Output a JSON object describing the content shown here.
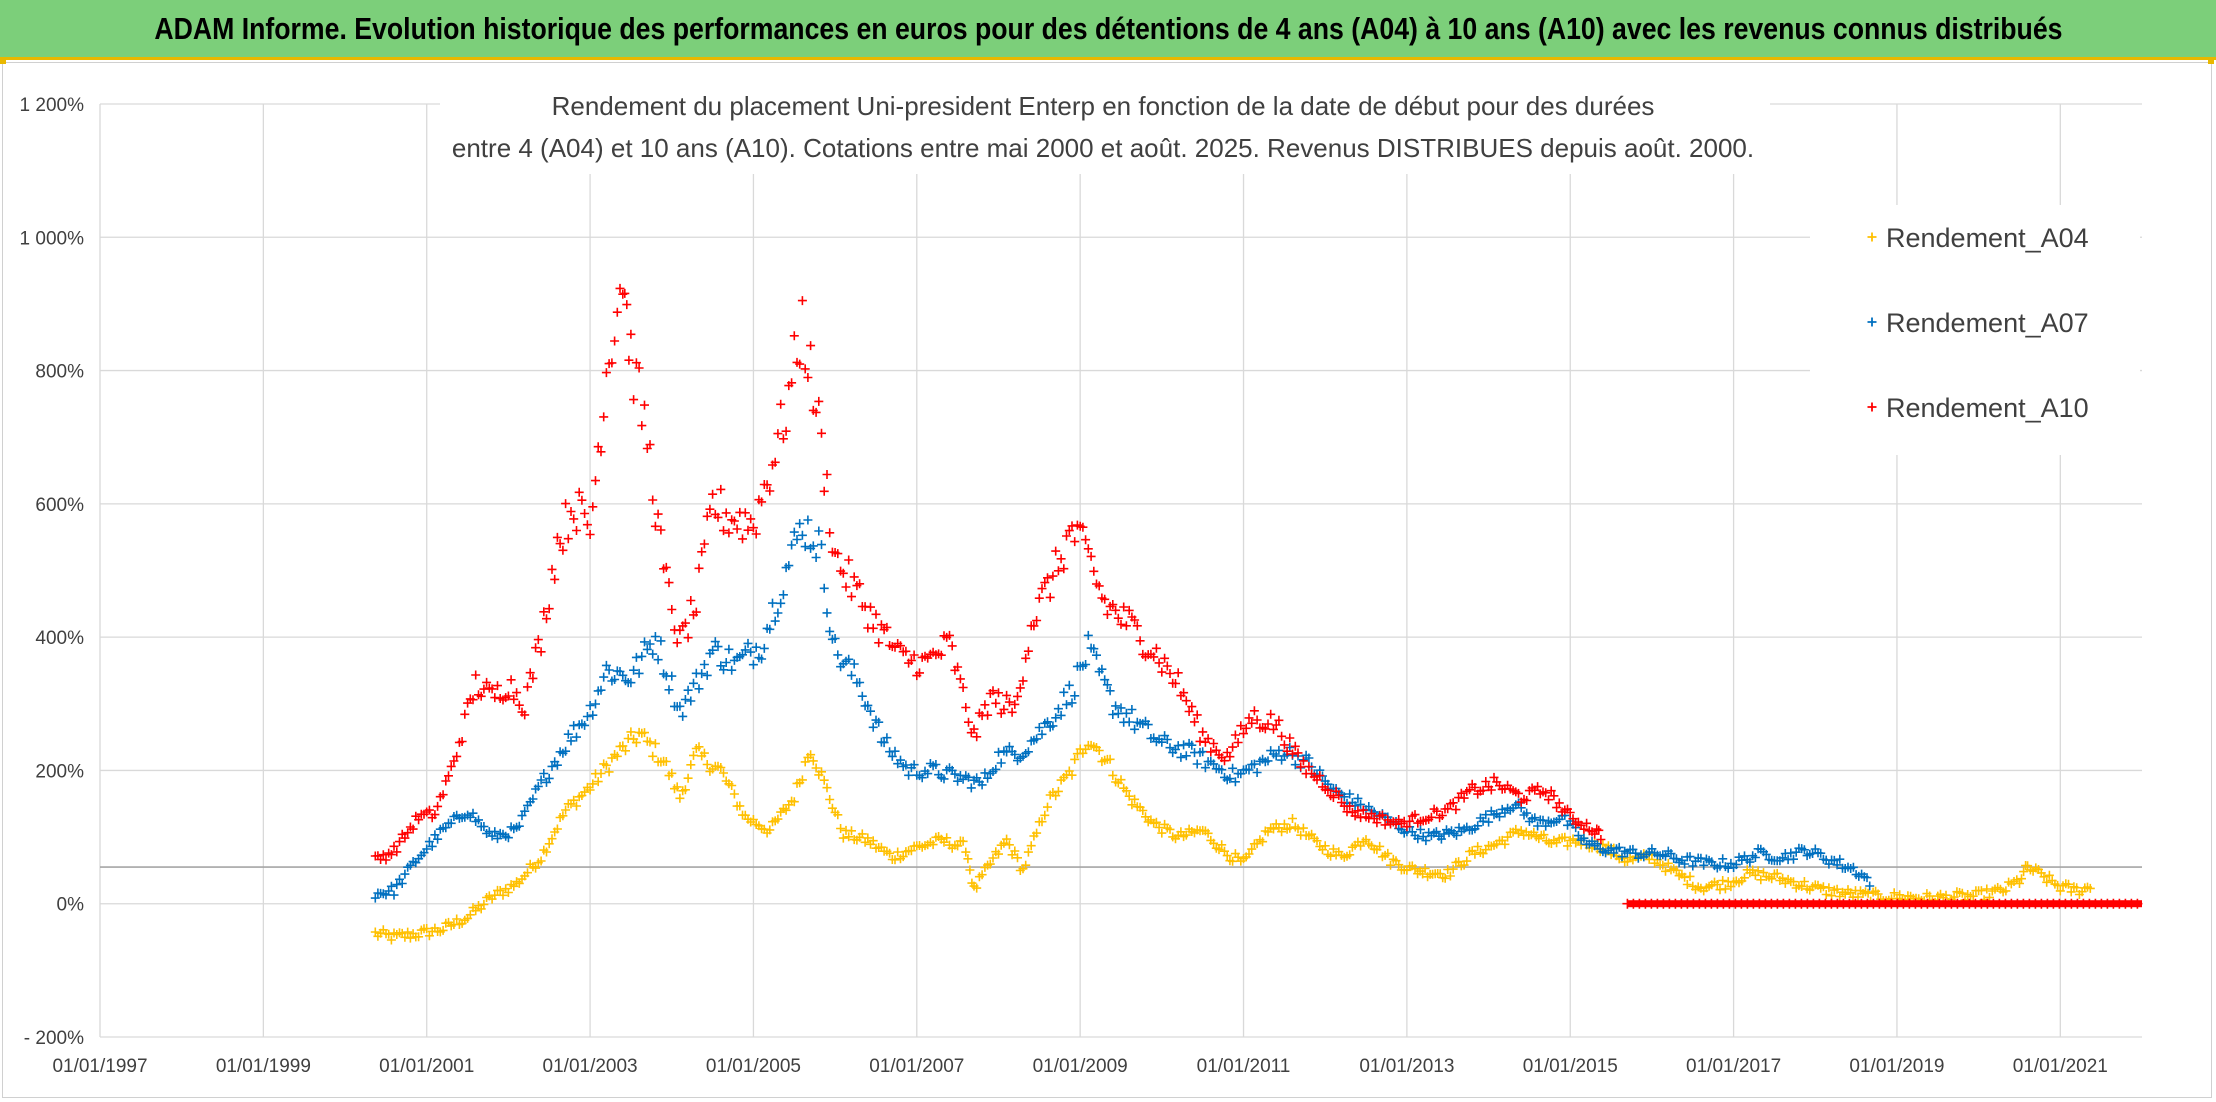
{
  "header": {
    "title": "ADAM Informe. Evolution historique des performances en euros pour des détentions de 4 ans (A04) à 10 ans (A10) avec les revenus connus distribués"
  },
  "chart_data": {
    "type": "scatter",
    "title_lines": [
      "Rendement du placement Uni-president Enterp  en fonction de la date de début pour des durées",
      "entre 4 (A04) et 10 ans (A10). Cotations entre mai 2000 et août. 2025. Revenus DISTRIBUES depuis août. 2000."
    ],
    "x_unit": "year",
    "xlim": [
      1997.0,
      2022.0
    ],
    "x_ticks": [
      1997,
      1999,
      2001,
      2003,
      2005,
      2007,
      2009,
      2011,
      2013,
      2015,
      2017,
      2019,
      2021
    ],
    "x_tick_labels": [
      "01/01/1997",
      "01/01/1999",
      "01/01/2001",
      "01/01/2003",
      "01/01/2005",
      "01/01/2007",
      "01/01/2009",
      "01/01/2011",
      "01/01/2013",
      "01/01/2015",
      "01/01/2017",
      "01/01/2019",
      "01/01/2021"
    ],
    "ylim": [
      -200,
      1200
    ],
    "y_ticks": [
      -200,
      0,
      200,
      400,
      600,
      800,
      1000,
      1200
    ],
    "y_tick_labels": [
      "- 200%",
      "0%",
      "200%",
      "400%",
      "600%",
      "800%",
      "1 000%",
      "1 200%"
    ],
    "reference_line_y": 55,
    "grid": true,
    "legend_position": "right",
    "marker": "+",
    "series": [
      {
        "name": "Rendement_A04",
        "color": "#ffc000",
        "points": [
          [
            2000.37,
            -45
          ],
          [
            2000.6,
            -50
          ],
          [
            2000.9,
            -45
          ],
          [
            2001.2,
            -38
          ],
          [
            2001.5,
            -20
          ],
          [
            2001.8,
            10
          ],
          [
            2002.1,
            30
          ],
          [
            2002.4,
            70
          ],
          [
            2002.7,
            140
          ],
          [
            2003.0,
            175
          ],
          [
            2003.3,
            220
          ],
          [
            2003.6,
            255
          ],
          [
            2003.9,
            215
          ],
          [
            2004.1,
            160
          ],
          [
            2004.3,
            225
          ],
          [
            2004.6,
            200
          ],
          [
            2004.9,
            130
          ],
          [
            2005.2,
            110
          ],
          [
            2005.5,
            160
          ],
          [
            2005.7,
            235
          ],
          [
            2005.9,
            170
          ],
          [
            2006.1,
            105
          ],
          [
            2006.4,
            95
          ],
          [
            2006.7,
            70
          ],
          [
            2007.0,
            85
          ],
          [
            2007.3,
            95
          ],
          [
            2007.6,
            85
          ],
          [
            2007.7,
            20
          ],
          [
            2007.9,
            60
          ],
          [
            2008.1,
            95
          ],
          [
            2008.3,
            50
          ],
          [
            2008.6,
            150
          ],
          [
            2008.9,
            200
          ],
          [
            2009.1,
            250
          ],
          [
            2009.3,
            220
          ],
          [
            2009.6,
            160
          ],
          [
            2009.9,
            120
          ],
          [
            2010.2,
            100
          ],
          [
            2010.5,
            110
          ],
          [
            2010.8,
            75
          ],
          [
            2011.0,
            60
          ],
          [
            2011.3,
            110
          ],
          [
            2011.6,
            120
          ],
          [
            2011.9,
            90
          ],
          [
            2012.2,
            70
          ],
          [
            2012.5,
            100
          ],
          [
            2012.8,
            65
          ],
          [
            2013.1,
            50
          ],
          [
            2013.5,
            45
          ],
          [
            2013.8,
            75
          ],
          [
            2014.1,
            90
          ],
          [
            2014.4,
            110
          ],
          [
            2014.8,
            90
          ],
          [
            2015.1,
            95
          ],
          [
            2015.4,
            85
          ],
          [
            2015.7,
            65
          ],
          [
            2016.0,
            70
          ],
          [
            2016.3,
            45
          ],
          [
            2016.6,
            25
          ],
          [
            2016.9,
            30
          ],
          [
            2017.2,
            45
          ],
          [
            2017.5,
            40
          ],
          [
            2017.8,
            30
          ],
          [
            2018.1,
            20
          ],
          [
            2018.4,
            15
          ],
          [
            2018.8,
            10
          ],
          [
            2019.1,
            10
          ],
          [
            2019.4,
            8
          ],
          [
            2019.7,
            10
          ],
          [
            2020.0,
            12
          ],
          [
            2020.3,
            20
          ],
          [
            2020.5,
            35
          ],
          [
            2020.6,
            55
          ],
          [
            2020.8,
            40
          ],
          [
            2021.0,
            25
          ],
          [
            2021.2,
            20
          ],
          [
            2021.4,
            25
          ]
        ]
      },
      {
        "name": "Rendement_A07",
        "color": "#0070c0",
        "points": [
          [
            2000.37,
            15
          ],
          [
            2000.6,
            20
          ],
          [
            2000.9,
            70
          ],
          [
            2001.2,
            110
          ],
          [
            2001.5,
            140
          ],
          [
            2001.8,
            100
          ],
          [
            2002.1,
            110
          ],
          [
            2002.4,
            180
          ],
          [
            2002.7,
            240
          ],
          [
            2003.0,
            290
          ],
          [
            2003.2,
            350
          ],
          [
            2003.5,
            340
          ],
          [
            2003.8,
            400
          ],
          [
            2004.1,
            290
          ],
          [
            2004.3,
            330
          ],
          [
            2004.5,
            380
          ],
          [
            2004.8,
            360
          ],
          [
            2005.1,
            390
          ],
          [
            2005.4,
            500
          ],
          [
            2005.6,
            570
          ],
          [
            2005.8,
            540
          ],
          [
            2006.0,
            380
          ],
          [
            2006.3,
            330
          ],
          [
            2006.6,
            240
          ],
          [
            2006.9,
            200
          ],
          [
            2007.2,
            200
          ],
          [
            2007.5,
            190
          ],
          [
            2007.8,
            180
          ],
          [
            2008.0,
            220
          ],
          [
            2008.3,
            230
          ],
          [
            2008.6,
            270
          ],
          [
            2008.9,
            320
          ],
          [
            2009.1,
            380
          ],
          [
            2009.4,
            300
          ],
          [
            2009.7,
            270
          ],
          [
            2010.0,
            240
          ],
          [
            2010.3,
            230
          ],
          [
            2010.6,
            210
          ],
          [
            2010.9,
            190
          ],
          [
            2011.2,
            210
          ],
          [
            2011.5,
            230
          ],
          [
            2011.8,
            210
          ],
          [
            2012.1,
            170
          ],
          [
            2012.4,
            150
          ],
          [
            2012.7,
            130
          ],
          [
            2013.0,
            110
          ],
          [
            2013.3,
            100
          ],
          [
            2013.7,
            110
          ],
          [
            2014.0,
            130
          ],
          [
            2014.3,
            150
          ],
          [
            2014.6,
            120
          ],
          [
            2014.9,
            130
          ],
          [
            2015.2,
            90
          ],
          [
            2015.5,
            80
          ],
          [
            2015.8,
            75
          ],
          [
            2016.1,
            75
          ],
          [
            2016.4,
            65
          ],
          [
            2016.7,
            60
          ],
          [
            2017.0,
            60
          ],
          [
            2017.3,
            75
          ],
          [
            2017.6,
            70
          ],
          [
            2017.9,
            80
          ],
          [
            2018.2,
            65
          ],
          [
            2018.5,
            50
          ],
          [
            2018.7,
            30
          ]
        ]
      },
      {
        "name": "Rendement_A10",
        "color": "#ff0000",
        "points": [
          [
            2000.37,
            65
          ],
          [
            2000.6,
            80
          ],
          [
            2000.9,
            130
          ],
          [
            2001.1,
            135
          ],
          [
            2001.3,
            200
          ],
          [
            2001.6,
            330
          ],
          [
            2001.8,
            310
          ],
          [
            2002.0,
            330
          ],
          [
            2002.2,
            300
          ],
          [
            2002.4,
            400
          ],
          [
            2002.6,
            540
          ],
          [
            2002.8,
            600
          ],
          [
            2003.0,
            560
          ],
          [
            2003.2,
            800
          ],
          [
            2003.4,
            950
          ],
          [
            2003.5,
            820
          ],
          [
            2003.7,
            700
          ],
          [
            2003.9,
            500
          ],
          [
            2004.1,
            390
          ],
          [
            2004.3,
            450
          ],
          [
            2004.5,
            600
          ],
          [
            2004.7,
            580
          ],
          [
            2005.0,
            570
          ],
          [
            2005.2,
            650
          ],
          [
            2005.4,
            740
          ],
          [
            2005.6,
            870
          ],
          [
            2005.8,
            720
          ],
          [
            2006.0,
            520
          ],
          [
            2006.2,
            480
          ],
          [
            2006.5,
            420
          ],
          [
            2006.8,
            370
          ],
          [
            2007.1,
            360
          ],
          [
            2007.4,
            390
          ],
          [
            2007.7,
            250
          ],
          [
            2007.9,
            310
          ],
          [
            2008.2,
            290
          ],
          [
            2008.4,
            420
          ],
          [
            2008.7,
            500
          ],
          [
            2008.9,
            560
          ],
          [
            2009.1,
            520
          ],
          [
            2009.3,
            450
          ],
          [
            2009.6,
            420
          ],
          [
            2009.9,
            380
          ],
          [
            2010.2,
            330
          ],
          [
            2010.5,
            250
          ],
          [
            2010.8,
            220
          ],
          [
            2011.1,
            280
          ],
          [
            2011.4,
            270
          ],
          [
            2011.7,
            210
          ],
          [
            2012.0,
            180
          ],
          [
            2012.3,
            140
          ],
          [
            2012.6,
            130
          ],
          [
            2012.9,
            120
          ],
          [
            2013.2,
            130
          ],
          [
            2013.5,
            140
          ],
          [
            2013.8,
            170
          ],
          [
            2014.1,
            180
          ],
          [
            2014.4,
            160
          ],
          [
            2014.7,
            170
          ],
          [
            2015.0,
            130
          ],
          [
            2015.3,
            110
          ],
          [
            2015.4,
            100
          ]
        ],
        "flat_segment": [
          [
            2015.7,
            0
          ],
          [
            2022.0,
            0
          ]
        ]
      }
    ]
  }
}
